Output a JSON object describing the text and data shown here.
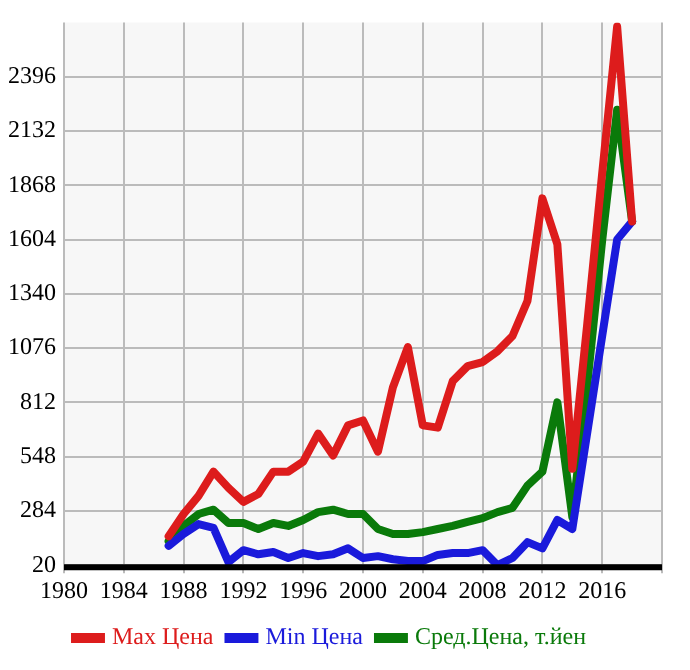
{
  "chart_data": {
    "type": "line",
    "x": [
      1987,
      1988,
      1989,
      1990,
      1991,
      1992,
      1993,
      1994,
      1995,
      1996,
      1997,
      1998,
      1999,
      2000,
      2001,
      2002,
      2003,
      2004,
      2005,
      2006,
      2007,
      2008,
      2009,
      2010,
      2011,
      2012,
      2013,
      2014,
      2015,
      2016,
      2017,
      2018
    ],
    "series": [
      {
        "name": "Max Цена",
        "color": "#dd1c1c",
        "values": [
          161,
          269,
          357,
          475,
          396,
          328,
          366,
          475,
          475,
          524,
          660,
          554,
          700,
          724,
          572,
          885,
          1081,
          700,
          689,
          915,
          988,
          1008,
          1061,
          1135,
          1305,
          1804,
          1581,
          489,
          1193,
          1927,
          2640,
          1692
        ]
      },
      {
        "name": "Min Цена",
        "color": "#1a1adb",
        "values": [
          114,
          172,
          220,
          202,
          35,
          93,
          73,
          84,
          55,
          79,
          64,
          73,
          102,
          55,
          64,
          49,
          40,
          40,
          70,
          79,
          79,
          93,
          20,
          55,
          132,
          102,
          240,
          196,
          665,
          1135,
          1604,
          1692
        ]
      },
      {
        "name": "Сред.Цена, т.йен",
        "color": "#0a7a0a",
        "values": [
          137,
          211,
          269,
          290,
          225,
          225,
          196,
          225,
          211,
          240,
          278,
          290,
          269,
          269,
          196,
          172,
          172,
          181,
          196,
          211,
          231,
          249,
          278,
          299,
          407,
          475,
          812,
          255,
          900,
          1600,
          2235,
          1692
        ]
      }
    ],
    "xlim": [
      1980,
      2020
    ],
    "xticks": [
      1980,
      1984,
      1988,
      1992,
      1996,
      2000,
      2004,
      2008,
      2012,
      2016,
      {
        "value": 2020,
        "label": null
      }
    ],
    "ylim": [
      20,
      2660
    ],
    "yticks": [
      20,
      284,
      548,
      812,
      1076,
      1340,
      1604,
      1868,
      2132,
      2396
    ],
    "grid": true,
    "legend": "bottom",
    "marker": "none",
    "line_style": "solid"
  }
}
